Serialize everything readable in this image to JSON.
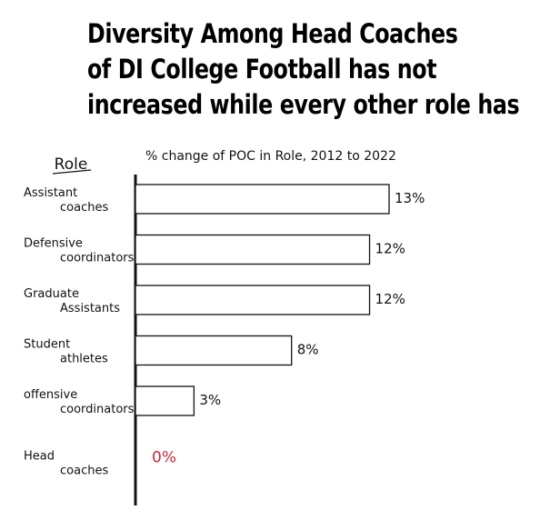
{
  "title_lines": [
    "Diversity Among Head Coaches",
    "of DI College Football has not",
    "increased while every other role has"
  ],
  "chart_data": {
    "type": "bar",
    "orientation": "horizontal",
    "title": "Diversity Among Head Coaches of DI College Football has not increased while every other role has",
    "ylabel": "Role",
    "xlabel": "% change of POC in Role, 2012 to 2022",
    "categories": [
      [
        "Assistant",
        "coaches"
      ],
      [
        "Defensive",
        "coordinators"
      ],
      [
        "Graduate",
        "Assistants"
      ],
      [
        "Student",
        "athletes"
      ],
      [
        "offensive",
        "coordinators"
      ],
      [
        "Head",
        "coaches"
      ]
    ],
    "values": [
      13,
      12,
      12,
      8,
      3,
      0
    ],
    "labels": [
      "13%",
      "12%",
      "12%",
      "8%",
      "3%",
      "0%"
    ],
    "xlim": [
      0,
      13
    ],
    "grid": false,
    "colors": {
      "bar_fill": "#ffffff",
      "bar_stroke": "#111111",
      "highlight_label": "#d0243c",
      "text": "#111111"
    },
    "highlight_index": 5
  }
}
